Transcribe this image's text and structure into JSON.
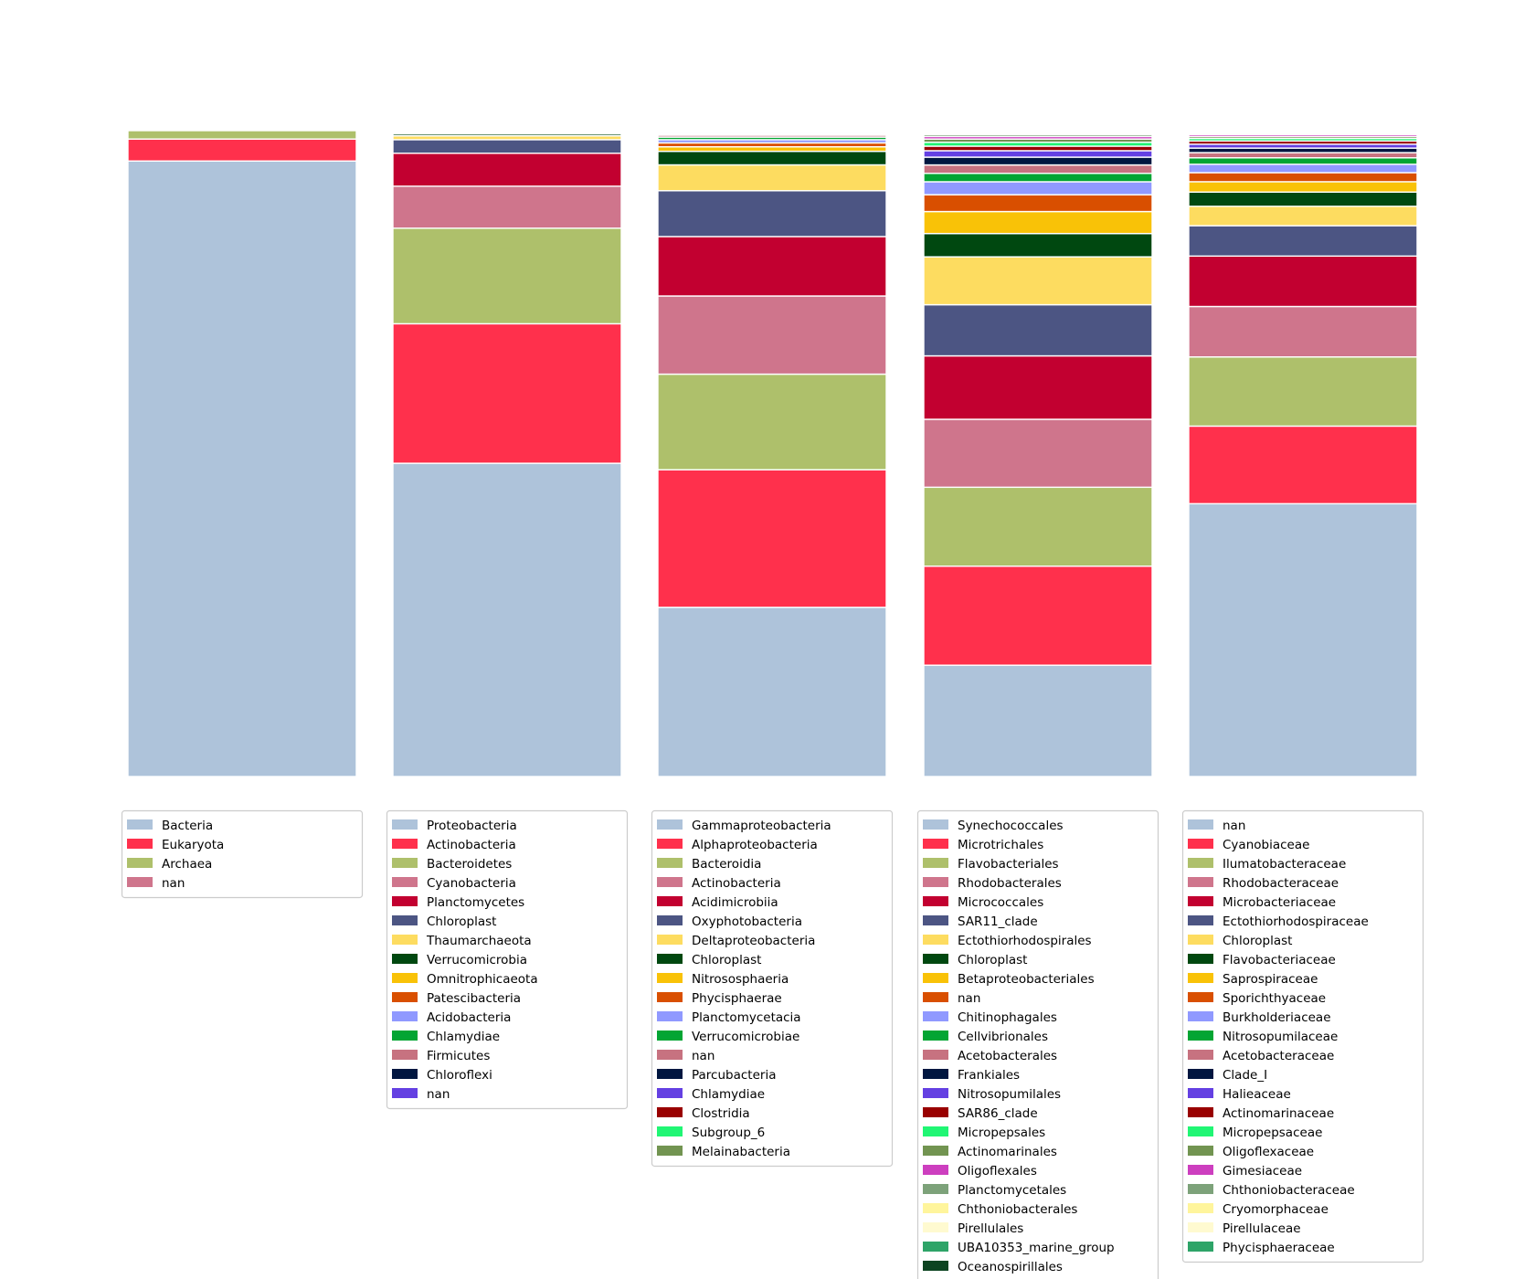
{
  "chart_data": [
    {
      "type": "bar",
      "stacked": true,
      "normalized": true,
      "level": "domain",
      "series": [
        {
          "name": "Bacteria",
          "value": 0.953,
          "color": "#aec3da"
        },
        {
          "name": "Eukaryota",
          "value": 0.034,
          "color": "#ff304c"
        },
        {
          "name": "Archaea",
          "value": 0.013,
          "color": "#aec06b"
        },
        {
          "name": "nan",
          "value": 0.0,
          "color": "#cf758c"
        }
      ]
    },
    {
      "type": "bar",
      "stacked": true,
      "normalized": true,
      "level": "phylum",
      "series": [
        {
          "name": "Proteobacteria",
          "value": 0.485,
          "color": "#aec3da"
        },
        {
          "name": "Actinobacteria",
          "value": 0.216,
          "color": "#ff304c"
        },
        {
          "name": "Bacteroidetes",
          "value": 0.148,
          "color": "#aec06b"
        },
        {
          "name": "Cyanobacteria",
          "value": 0.065,
          "color": "#cf758c"
        },
        {
          "name": "Planctomycetes",
          "value": 0.051,
          "color": "#c20030"
        },
        {
          "name": "Chloroplast",
          "value": 0.021,
          "color": "#4c5583"
        },
        {
          "name": "Thaumarchaeota",
          "value": 0.006,
          "color": "#fddc60"
        },
        {
          "name": "Verrucomicrobia",
          "value": 0.003,
          "color": "#004810"
        },
        {
          "name": "Omnitrophicaeota",
          "value": 0.001,
          "color": "#f9c207"
        },
        {
          "name": "Patescibacteria",
          "value": 0.001,
          "color": "#d94f00"
        },
        {
          "name": "Acidobacteria",
          "value": 0.001,
          "color": "#9099ff"
        },
        {
          "name": "Chlamydiae",
          "value": 0.001,
          "color": "#03a533"
        },
        {
          "name": "Firmicutes",
          "value": 0.0005,
          "color": "#c77280"
        },
        {
          "name": "Chloroflexi",
          "value": 0.0005,
          "color": "#001640"
        },
        {
          "name": "nan",
          "value": 0.0,
          "color": "#6440e2"
        }
      ]
    },
    {
      "type": "bar",
      "stacked": true,
      "normalized": true,
      "level": "class",
      "series": [
        {
          "name": "Gammaproteobacteria",
          "value": 0.262,
          "color": "#aec3da"
        },
        {
          "name": "Alphaproteobacteria",
          "value": 0.213,
          "color": "#ff304c"
        },
        {
          "name": "Bacteroidia",
          "value": 0.148,
          "color": "#aec06b"
        },
        {
          "name": "Actinobacteria",
          "value": 0.121,
          "color": "#cf758c"
        },
        {
          "name": "Acidimicrobiia",
          "value": 0.092,
          "color": "#c20030"
        },
        {
          "name": "Oxyphotobacteria",
          "value": 0.071,
          "color": "#4c5583"
        },
        {
          "name": "Deltaproteobacteria",
          "value": 0.04,
          "color": "#fddc60"
        },
        {
          "name": "Chloroplast",
          "value": 0.021,
          "color": "#004810"
        },
        {
          "name": "Nitrososphaeria",
          "value": 0.007,
          "color": "#f9c207"
        },
        {
          "name": "Phycisphaerae",
          "value": 0.006,
          "color": "#d94f00"
        },
        {
          "name": "Planctomycetacia",
          "value": 0.005,
          "color": "#9099ff"
        },
        {
          "name": "Verrucomicrobiae",
          "value": 0.004,
          "color": "#03a533"
        },
        {
          "name": "nan",
          "value": 0.003,
          "color": "#c77280"
        },
        {
          "name": "Parcubacteria",
          "value": 0.002,
          "color": "#001640"
        },
        {
          "name": "Chlamydiae",
          "value": 0.002,
          "color": "#6440e2"
        },
        {
          "name": "Clostridia",
          "value": 0.001,
          "color": "#990000"
        },
        {
          "name": "Subgroup_6",
          "value": 0.001,
          "color": "#20f674"
        },
        {
          "name": "Melainabacteria",
          "value": 0.001,
          "color": "#729451"
        }
      ]
    },
    {
      "type": "bar",
      "stacked": true,
      "normalized": true,
      "level": "order",
      "series": [
        {
          "name": "Synechococcales",
          "value": 0.172,
          "color": "#aec3da"
        },
        {
          "name": "Microtrichales",
          "value": 0.153,
          "color": "#ff304c"
        },
        {
          "name": "Flavobacteriales",
          "value": 0.122,
          "color": "#aec06b"
        },
        {
          "name": "Rhodobacterales",
          "value": 0.105,
          "color": "#cf758c"
        },
        {
          "name": "Micrococcales",
          "value": 0.098,
          "color": "#c20030"
        },
        {
          "name": "SAR11_clade",
          "value": 0.079,
          "color": "#4c5583"
        },
        {
          "name": "Ectothiorhodospirales",
          "value": 0.074,
          "color": "#fddc60"
        },
        {
          "name": "Chloroplast",
          "value": 0.036,
          "color": "#004810"
        },
        {
          "name": "Betaproteobacteriales",
          "value": 0.034,
          "color": "#f9c207"
        },
        {
          "name": "nan",
          "value": 0.026,
          "color": "#d94f00"
        },
        {
          "name": "Chitinophagales",
          "value": 0.02,
          "color": "#9099ff"
        },
        {
          "name": "Cellvibrionales",
          "value": 0.013,
          "color": "#03a533"
        },
        {
          "name": "Acetobacterales",
          "value": 0.013,
          "color": "#c77280"
        },
        {
          "name": "Frankiales",
          "value": 0.012,
          "color": "#001640"
        },
        {
          "name": "Nitrosopumilales",
          "value": 0.01,
          "color": "#6440e2"
        },
        {
          "name": "SAR86_clade",
          "value": 0.007,
          "color": "#990000"
        },
        {
          "name": "Micropepsales",
          "value": 0.006,
          "color": "#20f674"
        },
        {
          "name": "Actinomarinales",
          "value": 0.005,
          "color": "#729451"
        },
        {
          "name": "Oligoflexales",
          "value": 0.004,
          "color": "#cd3fbf"
        },
        {
          "name": "Planctomycetales",
          "value": 0.003,
          "color": "#7da27a"
        },
        {
          "name": "Chthoniobacterales",
          "value": 0.002,
          "color": "#fff59c"
        },
        {
          "name": "Pirellulales",
          "value": 0.002,
          "color": "#fffad0"
        },
        {
          "name": "UBA10353_marine_group",
          "value": 0.001,
          "color": "#2ea468"
        },
        {
          "name": "Oceanospirillales",
          "value": 0.001,
          "color": "#0d4421"
        }
      ]
    },
    {
      "type": "bar",
      "stacked": true,
      "normalized": true,
      "level": "family",
      "series": [
        {
          "name": "nan",
          "value": 0.422,
          "color": "#aec3da"
        },
        {
          "name": "Cyanobiaceae",
          "value": 0.12,
          "color": "#ff304c"
        },
        {
          "name": "Ilumatobacteraceae",
          "value": 0.107,
          "color": "#aec06b"
        },
        {
          "name": "Rhodobacteraceae",
          "value": 0.078,
          "color": "#cf758c"
        },
        {
          "name": "Microbacteriaceae",
          "value": 0.078,
          "color": "#c20030"
        },
        {
          "name": "Ectothiorhodospiraceae",
          "value": 0.047,
          "color": "#4c5583"
        },
        {
          "name": "Chloroplast",
          "value": 0.03,
          "color": "#fddc60"
        },
        {
          "name": "Flavobacteriaceae",
          "value": 0.022,
          "color": "#004810"
        },
        {
          "name": "Saprospiraceae",
          "value": 0.016,
          "color": "#f9c207"
        },
        {
          "name": "Sporichthyaceae",
          "value": 0.014,
          "color": "#d94f00"
        },
        {
          "name": "Burkholderiaceae",
          "value": 0.013,
          "color": "#9099ff"
        },
        {
          "name": "Nitrosopumilaceae",
          "value": 0.01,
          "color": "#03a533"
        },
        {
          "name": "Acetobacteraceae",
          "value": 0.008,
          "color": "#c77280"
        },
        {
          "name": "Clade_I",
          "value": 0.007,
          "color": "#001640"
        },
        {
          "name": "Halieaceae",
          "value": 0.006,
          "color": "#6440e2"
        },
        {
          "name": "Actinomarinaceae",
          "value": 0.005,
          "color": "#990000"
        },
        {
          "name": "Micropepsaceae",
          "value": 0.004,
          "color": "#20f674"
        },
        {
          "name": "Oligoflexaceae",
          "value": 0.003,
          "color": "#729451"
        },
        {
          "name": "Gimesiaceae",
          "value": 0.003,
          "color": "#cd3fbf"
        },
        {
          "name": "Chthoniobacteraceae",
          "value": 0.002,
          "color": "#7da27a"
        },
        {
          "name": "Cryomorphaceae",
          "value": 0.002,
          "color": "#fff59c"
        },
        {
          "name": "Pirellulaceae",
          "value": 0.001,
          "color": "#fffad0"
        },
        {
          "name": "Phycisphaeraceae",
          "value": 0.001,
          "color": "#2ea468"
        }
      ]
    }
  ]
}
